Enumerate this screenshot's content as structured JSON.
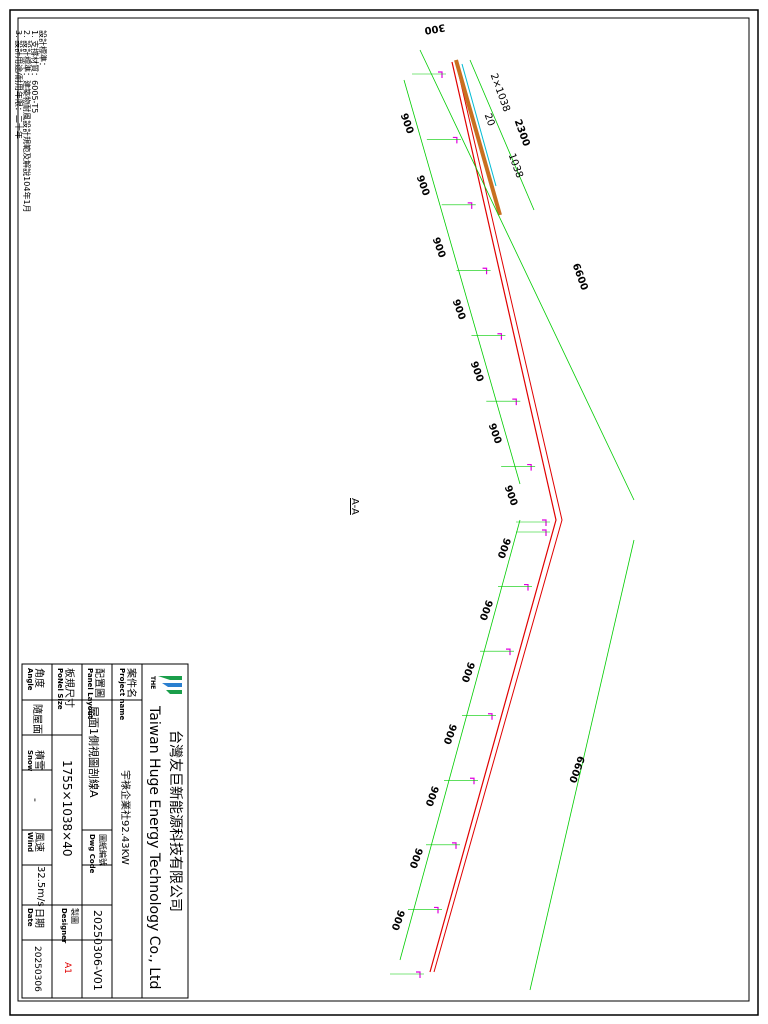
{
  "notes": {
    "heading": "設計標準：",
    "lines": [
      "1. 支撐材質：6005-T5",
      "2. 設計標準：建築物耐風設計規範及解說104年1月",
      "3. 設計用途/耐用年限：二十年"
    ]
  },
  "section_label": "A-A",
  "dimensions": {
    "panel_count_label": "2×1038",
    "gap_label": "20",
    "rail_total": "2300",
    "panel_width": "1038",
    "offset": "300",
    "spacing": "900",
    "span_upper": "6600",
    "span_lower": "6600"
  },
  "title_block": {
    "company_cn": "台灣友巨新能源科技有限公司",
    "company_en": "Taiwan Huge Energy Technology Co., Ltd",
    "logo_text": "THE",
    "project_label_cn": "案件名",
    "project_label_en": "Project name",
    "project_value": "宇祿企業社92.43KW",
    "layout_label_cn": "配置圖",
    "layout_label_en": "Panel Layout",
    "layout_value": "屋面1側視圖剖線A",
    "dwg_label_cn": "圖紙編號",
    "dwg_label_en": "Dwg Code",
    "dwg_value": "20250306-V01",
    "size_label_cn": "板規尺寸",
    "size_label_en": "PoNel Size",
    "size_value": "1755×1038×40",
    "designer_label_cn": "製圖",
    "designer_label_en": "Designer",
    "designer_value": "A1",
    "angle_label_cn": "角度",
    "angle_label_en": "Angle",
    "angle_value": "隨屋面",
    "snow_label_cn": "積雪",
    "snow_label_en": "Snow",
    "snow_value": "-",
    "wind_label_cn": "風速",
    "wind_label_en": "Wind",
    "wind_value": "32.5m/s",
    "date_label_cn": "日期",
    "date_label_en": "Date",
    "date_value": "20250306"
  },
  "colors": {
    "rail": "#e00000",
    "dimension": "#00cc00",
    "bracket": "#e000e0",
    "panel": "#c87020",
    "panel_top": "#00bcd4",
    "frame": "#000000"
  }
}
